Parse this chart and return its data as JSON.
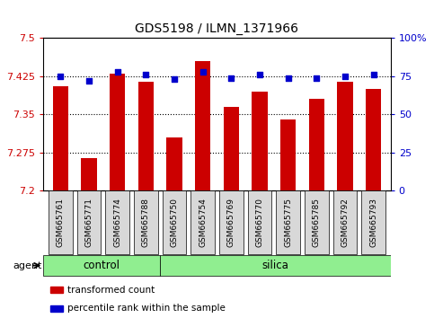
{
  "title": "GDS5198 / ILMN_1371966",
  "samples": [
    "GSM665761",
    "GSM665771",
    "GSM665774",
    "GSM665788",
    "GSM665750",
    "GSM665754",
    "GSM665769",
    "GSM665770",
    "GSM665775",
    "GSM665785",
    "GSM665792",
    "GSM665793"
  ],
  "groups": [
    "control",
    "control",
    "control",
    "control",
    "silica",
    "silica",
    "silica",
    "silica",
    "silica",
    "silica",
    "silica",
    "silica"
  ],
  "transformed_count": [
    7.405,
    7.265,
    7.43,
    7.415,
    7.305,
    7.455,
    7.365,
    7.395,
    7.34,
    7.38,
    7.415,
    7.4
  ],
  "percentile_rank": [
    75,
    72,
    78,
    76,
    73,
    78,
    74,
    76,
    74,
    74,
    75,
    76
  ],
  "ylim_left": [
    7.2,
    7.5
  ],
  "ylim_right": [
    0,
    100
  ],
  "yticks_left": [
    7.2,
    7.275,
    7.35,
    7.425,
    7.5
  ],
  "yticks_right": [
    0,
    25,
    50,
    75,
    100
  ],
  "bar_color": "#cc0000",
  "dot_color": "#0000cc",
  "group_color": "#90ee90",
  "xlabel_color": "#cc0000",
  "ylabel_right_color": "#0000cc",
  "agent_label": "agent",
  "legend_bar_label": "transformed count",
  "legend_dot_label": "percentile rank within the sample",
  "tick_box_color": "#d8d8d8",
  "figsize": [
    4.83,
    3.54
  ],
  "dpi": 100
}
